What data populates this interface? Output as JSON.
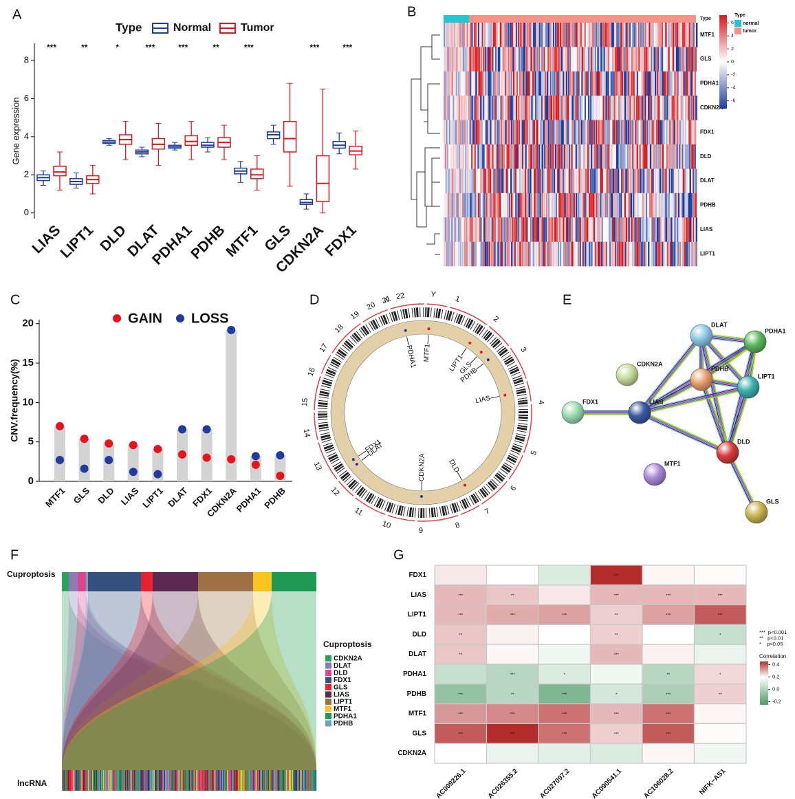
{
  "chart_data": [
    {
      "panel": "A",
      "type": "box",
      "legend_title": "Type",
      "ylabel": "Gene expression",
      "categories": [
        "LIAS",
        "LIPT1",
        "DLD",
        "DLAT",
        "PDHA1",
        "PDHB",
        "MTF1",
        "GLS",
        "CDKN2A",
        "FDX1"
      ],
      "significance": [
        "***",
        "**",
        "*",
        "***",
        "***",
        "**",
        "***",
        null,
        "***",
        "***"
      ],
      "series": [
        {
          "name": "Normal",
          "color": "#1f3c9c",
          "boxes": [
            [
              1.45,
              1.7,
              1.85,
              2.0,
              2.2
            ],
            [
              1.3,
              1.5,
              1.65,
              1.8,
              2.1
            ],
            [
              3.55,
              3.65,
              3.72,
              3.8,
              3.9
            ],
            [
              2.95,
              3.1,
              3.2,
              3.3,
              3.45
            ],
            [
              3.3,
              3.4,
              3.47,
              3.55,
              3.7
            ],
            [
              3.2,
              3.45,
              3.55,
              3.7,
              3.95
            ],
            [
              1.6,
              2.05,
              2.2,
              2.35,
              2.7
            ],
            [
              3.6,
              3.9,
              4.1,
              4.25,
              4.6
            ],
            [
              0.2,
              0.45,
              0.55,
              0.7,
              1.0
            ],
            [
              3.1,
              3.4,
              3.55,
              3.75,
              4.2
            ]
          ]
        },
        {
          "name": "Tumor",
          "color": "#e3141b",
          "boxes": [
            [
              1.2,
              1.95,
              2.15,
              2.45,
              3.2
            ],
            [
              1.0,
              1.55,
              1.75,
              1.95,
              2.5
            ],
            [
              2.8,
              3.6,
              3.85,
              4.1,
              4.8
            ],
            [
              2.5,
              3.35,
              3.6,
              3.9,
              4.7
            ],
            [
              2.8,
              3.55,
              3.75,
              4.05,
              4.8
            ],
            [
              2.8,
              3.45,
              3.7,
              3.95,
              4.6
            ],
            [
              1.2,
              1.8,
              2.0,
              2.3,
              3.0
            ],
            [
              1.4,
              3.2,
              3.9,
              4.8,
              6.8
            ],
            [
              0,
              0.6,
              1.55,
              3.0,
              6.5
            ],
            [
              2.3,
              3.05,
              3.25,
              3.5,
              4.3
            ]
          ]
        }
      ],
      "ylim": [
        -0.3,
        8.9
      ],
      "yticks": [
        0,
        2,
        4,
        6,
        8
      ]
    },
    {
      "panel": "B",
      "type": "expression_heatmap",
      "annotation_title": "Type",
      "rows": [
        "MTF1",
        "GLS",
        "PDHA1",
        "CDKN2A",
        "FDX1",
        "DLD",
        "DLAT",
        "PDHB",
        "LIAS",
        "LIPT1"
      ],
      "groups": [
        {
          "name": "normal",
          "color": "#22c7d0"
        },
        {
          "name": "tumor",
          "color": "#f4928a"
        }
      ],
      "colorbar_lim": [
        -7.2,
        7.2
      ],
      "colorbar_ticks": [
        6,
        4,
        2,
        0,
        -2,
        -4,
        -6
      ]
    },
    {
      "panel": "C",
      "type": "dot",
      "ylabel": "CNV.frequency(%)",
      "categories": [
        "MTF1",
        "GLS",
        "DLD",
        "LIAS",
        "LIPT1",
        "DLAT",
        "FDX1",
        "CDKN2A",
        "PDHA1",
        "PDHB"
      ],
      "series": [
        {
          "name": "GAIN",
          "color": "#e3141b",
          "values": [
            7.0,
            5.4,
            4.8,
            4.6,
            4.1,
            3.4,
            3.0,
            2.8,
            2.1,
            0.7
          ]
        },
        {
          "name": "LOSS",
          "color": "#1f3c9c",
          "values": [
            2.7,
            1.6,
            2.7,
            1.2,
            0.9,
            6.6,
            6.6,
            19.2,
            3.2,
            3.3
          ]
        }
      ],
      "ylim": [
        0,
        20.5
      ],
      "yticks": [
        0,
        5,
        10,
        15,
        20
      ]
    },
    {
      "panel": "D",
      "type": "circos",
      "chromosomes": [
        "1",
        "2",
        "3",
        "4",
        "5",
        "6",
        "7",
        "8",
        "9",
        "10",
        "11",
        "12",
        "13",
        "14",
        "15",
        "16",
        "17",
        "18",
        "19",
        "20",
        "21",
        "22",
        "X",
        "Y"
      ],
      "genes": [
        {
          "label": "MTF1"
        },
        {
          "label": "PDHA1"
        },
        {
          "label": "LIPT1"
        },
        {
          "label": "GLS"
        },
        {
          "label": "PDHB"
        },
        {
          "label": "LIAS"
        },
        {
          "label": "DLD"
        },
        {
          "label": "CDKN2A"
        },
        {
          "label": "DLAT"
        },
        {
          "label": "FDX1"
        }
      ]
    },
    {
      "panel": "E",
      "type": "network",
      "nodes": [
        {
          "label": "DLAT",
          "color": "#8fc8e8"
        },
        {
          "label": "PDHA1",
          "color": "#5cb85c"
        },
        {
          "label": "CDKN2A",
          "color": "#c8dc9a"
        },
        {
          "label": "PDHB",
          "color": "#e8a070"
        },
        {
          "label": "LIPT1",
          "color": "#3fb0b0"
        },
        {
          "label": "FDX1",
          "color": "#9adcb4"
        },
        {
          "label": "LIAS",
          "color": "#3a5aa0"
        },
        {
          "label": "DLD",
          "color": "#d83c3c"
        },
        {
          "label": "MTF1",
          "color": "#a88ad8"
        },
        {
          "label": "GLS",
          "color": "#c8b450"
        }
      ]
    },
    {
      "panel": "F",
      "type": "sankey",
      "top_label": "Cuproptosis",
      "bottom_label": "lncRNA",
      "legend_title": "Cuproptosis",
      "legend": [
        {
          "name": "CDKN2A",
          "color": "#2ca25f"
        },
        {
          "name": "DLAT",
          "color": "#8c7bb5"
        },
        {
          "name": "DLD",
          "color": "#e0448f"
        },
        {
          "name": "FDX1",
          "color": "#34507f"
        },
        {
          "name": "GLS",
          "color": "#e8232f"
        },
        {
          "name": "LIAS",
          "color": "#5a2a52"
        },
        {
          "name": "LIPT1",
          "color": "#9c7245"
        },
        {
          "name": "MTF1",
          "color": "#f7c51e"
        },
        {
          "name": "PDHA1",
          "color": "#1e9a55"
        },
        {
          "name": "PDHB",
          "color": "#6aa5c7"
        }
      ]
    },
    {
      "panel": "G",
      "type": "correlation_heatmap",
      "colorbar_title": "Correlation",
      "rows": [
        "FDX1",
        "LIAS",
        "LIPT1",
        "DLD",
        "DLAT",
        "PDHA1",
        "PDHB",
        "MTF1",
        "GLS",
        "CDKN2A"
      ],
      "columns": [
        "AC009226.1",
        "AC026355.2",
        "AC027097.2",
        "AC090541.1",
        "AC106028.2",
        "NIFK−AS1"
      ],
      "values": [
        [
          0.05,
          0.0,
          -0.05,
          0.45,
          0.02,
          0.01
        ],
        [
          0.15,
          0.12,
          0.05,
          0.15,
          0.15,
          0.15
        ],
        [
          0.15,
          0.18,
          0.2,
          0.1,
          0.2,
          0.35
        ],
        [
          0.12,
          0.03,
          0.0,
          0.1,
          0.0,
          -0.08
        ],
        [
          0.12,
          0.02,
          -0.02,
          0.15,
          0.03,
          -0.03
        ],
        [
          -0.08,
          -0.1,
          -0.05,
          -0.02,
          -0.1,
          0.08
        ],
        [
          -0.15,
          -0.1,
          -0.18,
          -0.06,
          -0.12,
          0.1
        ],
        [
          0.22,
          0.25,
          0.3,
          0.15,
          0.3,
          0.02
        ],
        [
          0.35,
          0.45,
          0.3,
          0.1,
          0.35,
          0.01
        ],
        [
          0.0,
          -0.03,
          -0.04,
          -0.05,
          0.02,
          -0.02
        ]
      ],
      "stars": [
        [
          null,
          null,
          null,
          "***",
          null,
          null
        ],
        [
          "***",
          "**",
          null,
          "***",
          "***",
          "***"
        ],
        [
          "***",
          "***",
          "***",
          "**",
          "***",
          "***"
        ],
        [
          "**",
          null,
          null,
          "**",
          null,
          "*"
        ],
        [
          "**",
          null,
          null,
          "***",
          null,
          null
        ],
        [
          null,
          "***",
          "*",
          null,
          "**",
          "*"
        ],
        [
          "***",
          "**",
          "***",
          "*",
          "***",
          "**"
        ],
        [
          "***",
          "***",
          "***",
          "***",
          "***",
          null
        ],
        [
          "***",
          "***",
          "***",
          "***",
          "***",
          null
        ],
        [
          null,
          null,
          null,
          null,
          null,
          null
        ]
      ],
      "sig_legend": [
        "***  p<0.001",
        "**   p<0.01",
        "*    p<0.05"
      ],
      "low_color": "#4e9a66",
      "high_color": "#b22c2c",
      "colorbar_lim": [
        -0.25,
        0.45
      ],
      "colorbar_ticks": [
        0.4,
        0.2,
        {
          "value": 0,
          "label": "0.0"
        },
        -0.2
      ]
    }
  ]
}
